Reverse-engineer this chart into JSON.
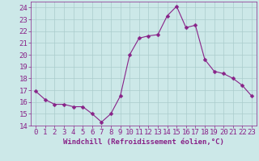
{
  "x": [
    0,
    1,
    2,
    3,
    4,
    5,
    6,
    7,
    8,
    9,
    10,
    11,
    12,
    13,
    14,
    15,
    16,
    17,
    18,
    19,
    20,
    21,
    22,
    23
  ],
  "y": [
    16.9,
    16.2,
    15.8,
    15.8,
    15.6,
    15.6,
    15.0,
    14.3,
    15.0,
    16.5,
    20.0,
    21.4,
    21.6,
    21.7,
    23.3,
    24.1,
    22.3,
    22.5,
    19.6,
    18.6,
    18.4,
    18.0,
    17.4,
    16.5
  ],
  "line_color": "#882288",
  "marker": "D",
  "marker_size": 2.5,
  "bg_color": "#cce8e8",
  "grid_color": "#aacccc",
  "xlabel": "Windchill (Refroidissement éolien,°C)",
  "ylim": [
    14,
    24.5
  ],
  "xlim": [
    -0.5,
    23.5
  ],
  "yticks": [
    14,
    15,
    16,
    17,
    18,
    19,
    20,
    21,
    22,
    23,
    24
  ],
  "xticks": [
    0,
    1,
    2,
    3,
    4,
    5,
    6,
    7,
    8,
    9,
    10,
    11,
    12,
    13,
    14,
    15,
    16,
    17,
    18,
    19,
    20,
    21,
    22,
    23
  ],
  "tick_color": "#882288",
  "label_color": "#882288",
  "tick_fontsize": 6.5,
  "xlabel_fontsize": 6.5
}
